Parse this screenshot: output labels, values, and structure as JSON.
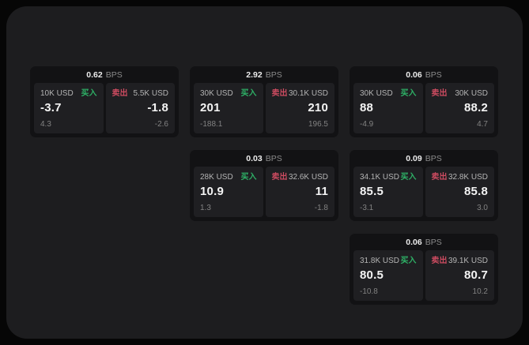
{
  "labels": {
    "bps": "BPS",
    "buy": "买入",
    "sell": "卖出"
  },
  "colors": {
    "page_bg": "#060606",
    "panel_bg": "#1d1d1f",
    "card_bg": "#121214",
    "tile_bg": "#1f1f22",
    "buy_green": "#2eb166",
    "sell_red": "#cc4b60"
  },
  "cards": [
    {
      "col": 1,
      "row": 1,
      "bps": "0.62",
      "buy": {
        "amount": "10K USD",
        "value": "-3.7",
        "delta": "4.3"
      },
      "sell": {
        "amount": "5.5K USD",
        "value": "-1.8",
        "delta": "-2.6"
      }
    },
    {
      "col": 2,
      "row": 1,
      "bps": "2.92",
      "buy": {
        "amount": "30K USD",
        "value": "201",
        "delta": "-188.1"
      },
      "sell": {
        "amount": "30.1K USD",
        "value": "210",
        "delta": "196.5"
      }
    },
    {
      "col": 3,
      "row": 1,
      "bps": "0.06",
      "buy": {
        "amount": "30K USD",
        "value": "88",
        "delta": "-4.9"
      },
      "sell": {
        "amount": "30K USD",
        "value": "88.2",
        "delta": "4.7"
      }
    },
    {
      "col": 2,
      "row": 2,
      "bps": "0.03",
      "buy": {
        "amount": "28K USD",
        "value": "10.9",
        "delta": "1.3"
      },
      "sell": {
        "amount": "32.6K USD",
        "value": "11",
        "delta": "-1.8"
      }
    },
    {
      "col": 3,
      "row": 2,
      "bps": "0.09",
      "buy": {
        "amount": "34.1K USD",
        "value": "85.5",
        "delta": "-3.1"
      },
      "sell": {
        "amount": "32.8K USD",
        "value": "85.8",
        "delta": "3.0"
      }
    },
    {
      "col": 3,
      "row": 3,
      "bps": "0.06",
      "buy": {
        "amount": "31.8K USD",
        "value": "80.5",
        "delta": "-10.8"
      },
      "sell": {
        "amount": "39.1K USD",
        "value": "80.7",
        "delta": "10.2"
      }
    }
  ]
}
